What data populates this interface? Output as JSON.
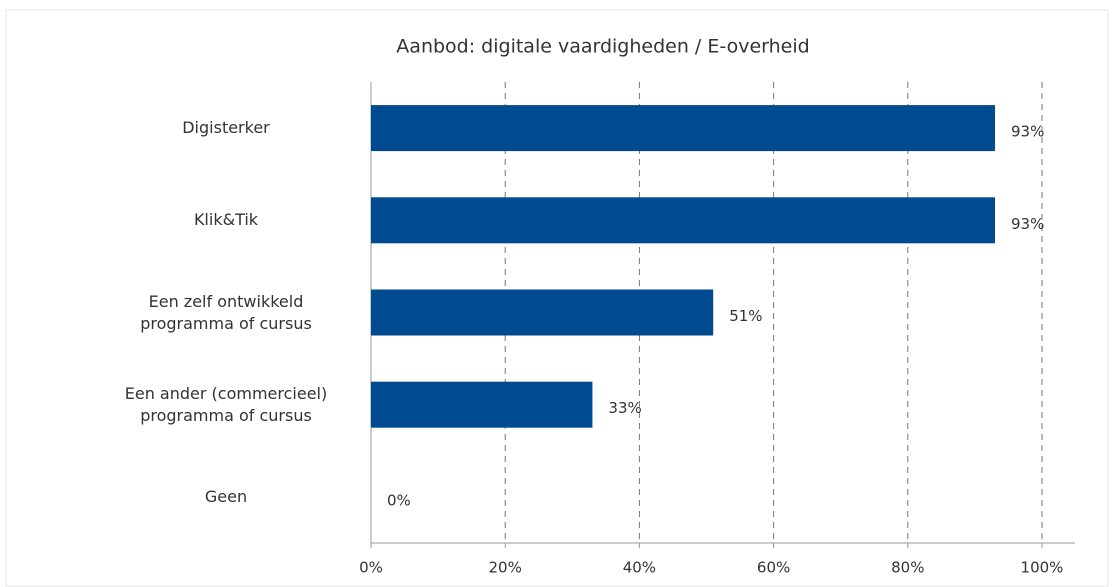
{
  "chart_data": {
    "type": "bar",
    "orientation": "horizontal",
    "title": "Aanbod: digitale vaardigheden / E-overheid",
    "categories": [
      "Digisterker",
      "Klik&Tik",
      "Een zelf ontwikkeld programma of cursus",
      "Een ander (commercieel) programma of cursus",
      "Geen"
    ],
    "values": [
      93,
      93,
      51,
      33,
      0
    ],
    "value_labels": [
      "93%",
      "93%",
      "51%",
      "33%",
      "0%"
    ],
    "color": "#004a8f",
    "xlim": [
      0,
      100
    ],
    "xticks": [
      {
        "value": 0,
        "label": "0%"
      },
      {
        "value": 20,
        "label": "20%"
      },
      {
        "value": 40,
        "label": "40%"
      },
      {
        "value": 60,
        "label": "60%"
      },
      {
        "value": 80,
        "label": "80%"
      },
      {
        "value": 100,
        "label": "100%"
      }
    ],
    "grid": true
  }
}
